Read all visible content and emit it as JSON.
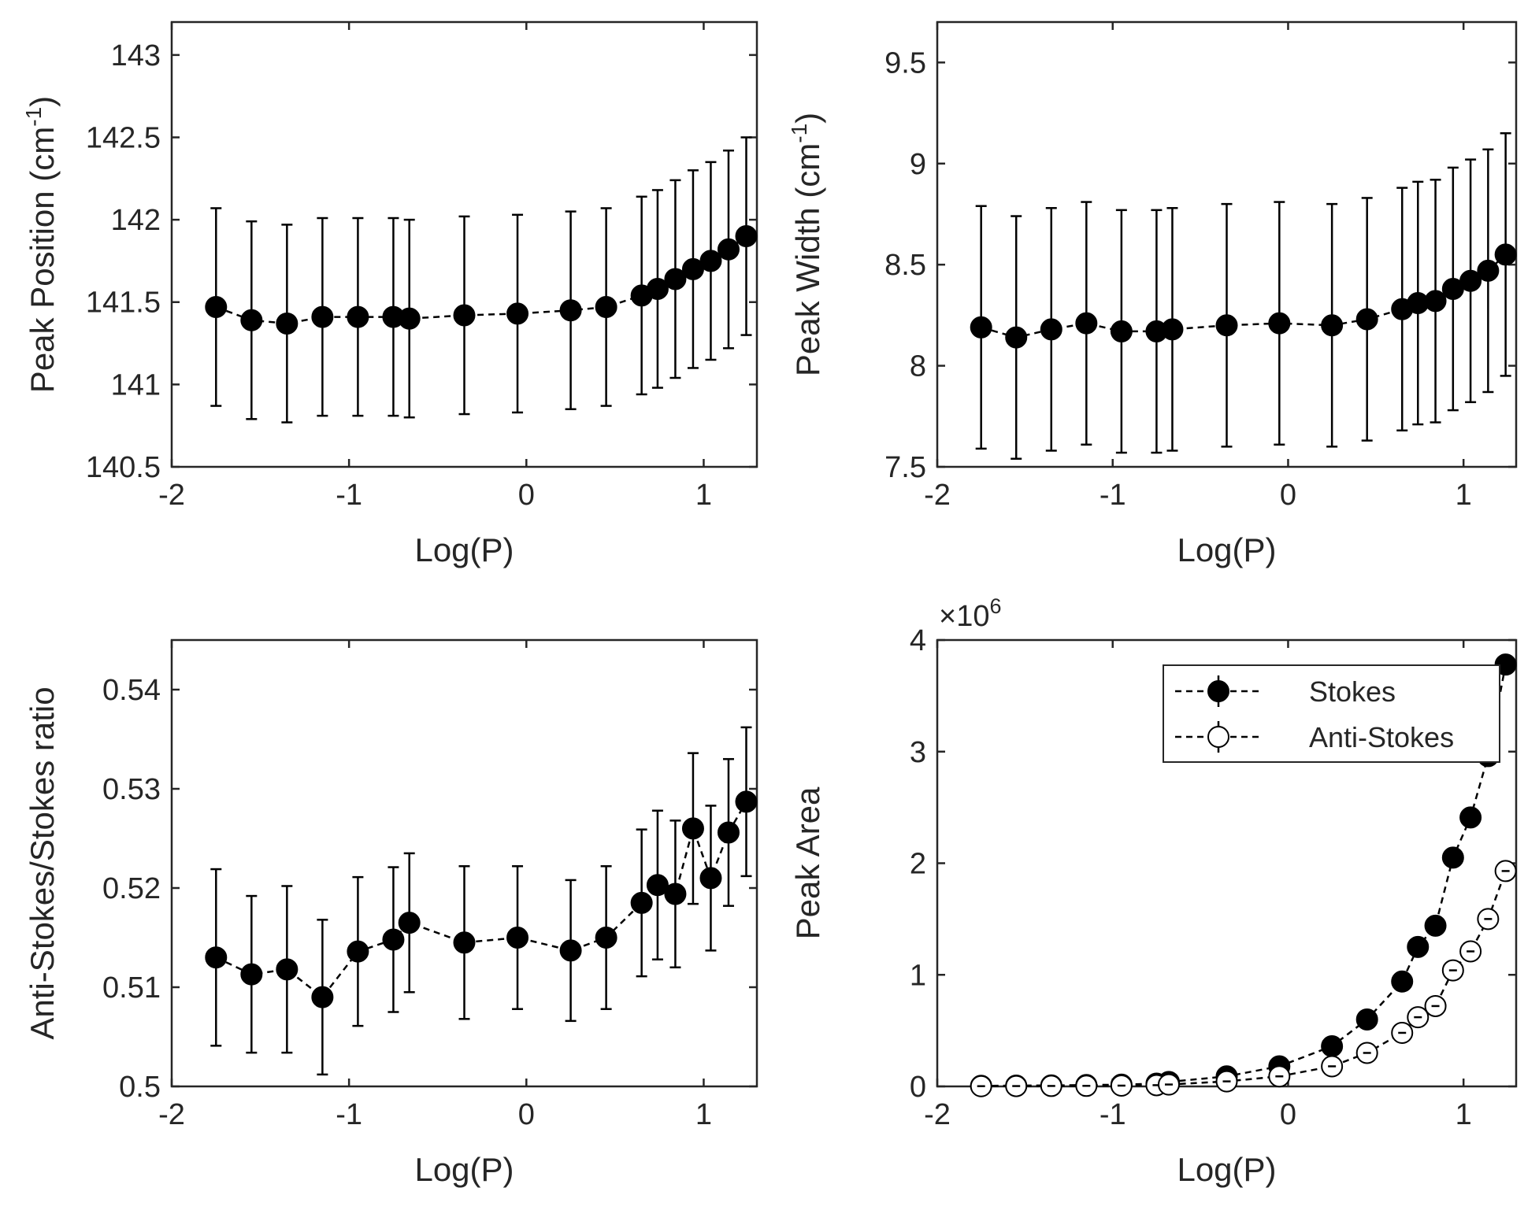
{
  "chart_data": [
    {
      "type": "scatter",
      "xlabel": "Log(P)",
      "ylabel": "Peak Position (cm",
      "ylabel_sup": "-1",
      "ylabel_end": ")",
      "xlim": [
        -2,
        1.3
      ],
      "ylim": [
        140.5,
        143.2
      ],
      "xticks": [
        -2,
        -1,
        0,
        1
      ],
      "xtick_labels": [
        "-2",
        "-1",
        "0",
        "1"
      ],
      "yticks": [
        140.5,
        141,
        141.5,
        142,
        142.5,
        143
      ],
      "ytick_labels": [
        "140.5",
        "141",
        "141.5",
        "142",
        "142.5",
        "143"
      ],
      "series": [
        {
          "name": "Peak Position",
          "x": [
            -1.75,
            -1.55,
            -1.35,
            -1.15,
            -0.95,
            -0.75,
            -0.66,
            -0.35,
            -0.05,
            0.25,
            0.45,
            0.65,
            0.74,
            0.84,
            0.94,
            1.04,
            1.14,
            1.24
          ],
          "y": [
            141.47,
            141.39,
            141.37,
            141.41,
            141.41,
            141.41,
            141.4,
            141.42,
            141.43,
            141.45,
            141.47,
            141.54,
            141.58,
            141.64,
            141.7,
            141.75,
            141.82,
            141.9
          ],
          "err": [
            0.6,
            0.6,
            0.6,
            0.6,
            0.6,
            0.6,
            0.6,
            0.6,
            0.6,
            0.6,
            0.6,
            0.6,
            0.6,
            0.6,
            0.6,
            0.6,
            0.6,
            0.6
          ]
        }
      ]
    },
    {
      "type": "scatter",
      "xlabel": "Log(P)",
      "ylabel": "Peak Width (cm",
      "ylabel_sup": "-1",
      "ylabel_end": ")",
      "xlim": [
        -2,
        1.3
      ],
      "ylim": [
        7.5,
        9.7
      ],
      "xticks": [
        -2,
        -1,
        0,
        1
      ],
      "xtick_labels": [
        "-2",
        "-1",
        "0",
        "1"
      ],
      "yticks": [
        7.5,
        8,
        8.5,
        9,
        9.5
      ],
      "ytick_labels": [
        "7.5",
        "8",
        "8.5",
        "9",
        "9.5"
      ],
      "series": [
        {
          "name": "Peak Width",
          "x": [
            -1.75,
            -1.55,
            -1.35,
            -1.15,
            -0.95,
            -0.75,
            -0.66,
            -0.35,
            -0.05,
            0.25,
            0.45,
            0.65,
            0.74,
            0.84,
            0.94,
            1.04,
            1.14,
            1.24
          ],
          "y": [
            8.19,
            8.14,
            8.18,
            8.21,
            8.17,
            8.17,
            8.18,
            8.2,
            8.21,
            8.2,
            8.23,
            8.28,
            8.31,
            8.32,
            8.38,
            8.42,
            8.47,
            8.55
          ],
          "err": [
            0.6,
            0.6,
            0.6,
            0.6,
            0.6,
            0.6,
            0.6,
            0.6,
            0.6,
            0.6,
            0.6,
            0.6,
            0.6,
            0.6,
            0.6,
            0.6,
            0.6,
            0.6
          ]
        }
      ]
    },
    {
      "type": "scatter",
      "xlabel": "Log(P)",
      "ylabel": "Anti-Stokes/Stokes ratio",
      "xlim": [
        -2,
        1.3
      ],
      "ylim": [
        0.5,
        0.545
      ],
      "xticks": [
        -2,
        -1,
        0,
        1
      ],
      "xtick_labels": [
        "-2",
        "-1",
        "0",
        "1"
      ],
      "yticks": [
        0.5,
        0.51,
        0.52,
        0.53,
        0.54
      ],
      "ytick_labels": [
        "0.5",
        "0.51",
        "0.52",
        "0.53",
        "0.54"
      ],
      "series": [
        {
          "name": "Anti-Stokes/Stokes ratio",
          "x": [
            -1.75,
            -1.55,
            -1.35,
            -1.15,
            -0.95,
            -0.75,
            -0.66,
            -0.35,
            -0.05,
            0.25,
            0.45,
            0.65,
            0.74,
            0.84,
            0.94,
            1.04,
            1.14,
            1.24
          ],
          "y": [
            0.513,
            0.5113,
            0.5118,
            0.509,
            0.5136,
            0.5148,
            0.5165,
            0.5145,
            0.515,
            0.5137,
            0.515,
            0.5185,
            0.5203,
            0.5194,
            0.526,
            0.521,
            0.5256,
            0.5287
          ],
          "err": [
            0.0089,
            0.0079,
            0.0084,
            0.0078,
            0.0075,
            0.0073,
            0.007,
            0.0077,
            0.0072,
            0.0071,
            0.0072,
            0.0074,
            0.0075,
            0.0074,
            0.0076,
            0.0073,
            0.0074,
            0.0075
          ]
        }
      ]
    },
    {
      "type": "scatter",
      "xlabel": "Log(P)",
      "ylabel": "Peak Area",
      "exponent_label": "×10",
      "exponent_sup": "6",
      "xlim": [
        -2,
        1.3
      ],
      "ylim": [
        0,
        4
      ],
      "xticks": [
        -2,
        -1,
        0,
        1
      ],
      "xtick_labels": [
        "-2",
        "-1",
        "0",
        "1"
      ],
      "yticks": [
        0,
        1,
        2,
        3,
        4
      ],
      "ytick_labels": [
        "0",
        "1",
        "2",
        "3",
        "4"
      ],
      "legend": "top-right",
      "series": [
        {
          "name": "Stokes",
          "marker": "filled",
          "x": [
            -1.75,
            -1.55,
            -1.35,
            -1.15,
            -0.95,
            -0.75,
            -0.68,
            -0.35,
            -0.05,
            0.25,
            0.45,
            0.65,
            0.74,
            0.84,
            0.94,
            1.04,
            1.14,
            1.24
          ],
          "y": [
            0.005,
            0.007,
            0.009,
            0.012,
            0.016,
            0.025,
            0.04,
            0.09,
            0.18,
            0.36,
            0.6,
            0.94,
            1.25,
            1.44,
            2.05,
            2.41,
            2.96,
            3.78
          ]
        },
        {
          "name": "Anti-Stokes",
          "marker": "open",
          "x": [
            -1.75,
            -1.55,
            -1.35,
            -1.15,
            -0.95,
            -0.75,
            -0.68,
            -0.35,
            -0.05,
            0.25,
            0.45,
            0.65,
            0.74,
            0.84,
            0.94,
            1.04,
            1.14,
            1.24
          ],
          "y": [
            0.002,
            0.003,
            0.004,
            0.005,
            0.007,
            0.011,
            0.017,
            0.045,
            0.09,
            0.18,
            0.3,
            0.48,
            0.62,
            0.72,
            1.04,
            1.21,
            1.5,
            1.93
          ]
        }
      ]
    }
  ]
}
